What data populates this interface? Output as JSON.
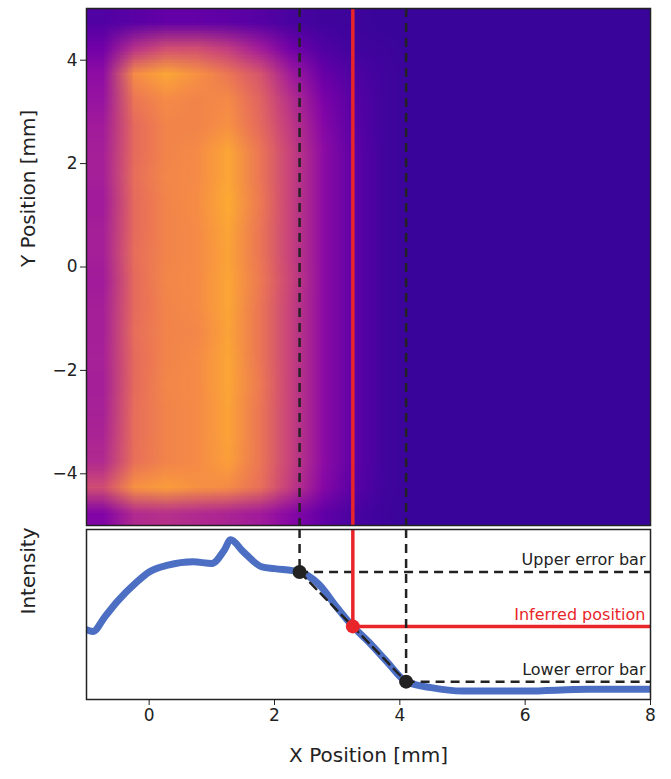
{
  "chart_data": [
    {
      "type": "heatmap",
      "ylabel": "Y Position [mm]",
      "xlim": [
        -1,
        8
      ],
      "ylim": [
        -5,
        5
      ],
      "yticks": [
        -4,
        -2,
        0,
        2,
        4
      ],
      "tick_labels": "y",
      "color": "plasma",
      "color_range": [
        0,
        1
      ],
      "cells": [
        [
          0.14,
          0.16,
          0.18,
          0.18,
          0.17,
          0.15,
          0.12,
          0.1,
          0.09,
          0.08,
          0.08,
          0.08,
          0.08,
          0.08,
          0.08,
          0.08,
          0.08,
          0.08
        ],
        [
          0.22,
          0.42,
          0.52,
          0.52,
          0.46,
          0.35,
          0.22,
          0.14,
          0.1,
          0.09,
          0.08,
          0.08,
          0.08,
          0.08,
          0.08,
          0.08,
          0.08,
          0.08
        ],
        [
          0.3,
          0.72,
          0.8,
          0.74,
          0.66,
          0.55,
          0.35,
          0.2,
          0.13,
          0.1,
          0.08,
          0.08,
          0.08,
          0.08,
          0.08,
          0.08,
          0.08,
          0.08
        ],
        [
          0.32,
          0.66,
          0.72,
          0.7,
          0.72,
          0.6,
          0.42,
          0.25,
          0.15,
          0.1,
          0.08,
          0.08,
          0.08,
          0.08,
          0.08,
          0.08,
          0.08,
          0.08
        ],
        [
          0.35,
          0.62,
          0.7,
          0.7,
          0.74,
          0.62,
          0.45,
          0.28,
          0.16,
          0.1,
          0.08,
          0.08,
          0.08,
          0.08,
          0.08,
          0.08,
          0.08,
          0.08
        ],
        [
          0.36,
          0.62,
          0.7,
          0.72,
          0.8,
          0.66,
          0.48,
          0.3,
          0.17,
          0.1,
          0.08,
          0.08,
          0.08,
          0.08,
          0.08,
          0.08,
          0.08,
          0.08
        ],
        [
          0.36,
          0.63,
          0.71,
          0.72,
          0.8,
          0.66,
          0.48,
          0.3,
          0.17,
          0.1,
          0.08,
          0.08,
          0.08,
          0.08,
          0.08,
          0.08,
          0.08,
          0.08
        ],
        [
          0.35,
          0.62,
          0.7,
          0.73,
          0.81,
          0.67,
          0.48,
          0.3,
          0.17,
          0.1,
          0.08,
          0.08,
          0.08,
          0.08,
          0.08,
          0.08,
          0.08,
          0.08
        ],
        [
          0.36,
          0.62,
          0.7,
          0.72,
          0.8,
          0.66,
          0.48,
          0.3,
          0.17,
          0.1,
          0.08,
          0.08,
          0.08,
          0.08,
          0.08,
          0.08,
          0.08,
          0.08
        ],
        [
          0.36,
          0.63,
          0.7,
          0.72,
          0.79,
          0.66,
          0.48,
          0.3,
          0.17,
          0.1,
          0.08,
          0.08,
          0.08,
          0.08,
          0.08,
          0.08,
          0.08,
          0.08
        ],
        [
          0.35,
          0.62,
          0.71,
          0.72,
          0.8,
          0.67,
          0.49,
          0.3,
          0.17,
          0.1,
          0.08,
          0.08,
          0.08,
          0.08,
          0.08,
          0.08,
          0.08,
          0.08
        ],
        [
          0.36,
          0.62,
          0.7,
          0.72,
          0.8,
          0.66,
          0.48,
          0.3,
          0.17,
          0.1,
          0.08,
          0.08,
          0.08,
          0.08,
          0.08,
          0.08,
          0.08,
          0.08
        ],
        [
          0.36,
          0.63,
          0.7,
          0.71,
          0.79,
          0.66,
          0.48,
          0.3,
          0.17,
          0.1,
          0.08,
          0.08,
          0.08,
          0.08,
          0.08,
          0.08,
          0.08,
          0.08
        ],
        [
          0.37,
          0.62,
          0.7,
          0.72,
          0.8,
          0.66,
          0.48,
          0.3,
          0.17,
          0.1,
          0.08,
          0.08,
          0.08,
          0.08,
          0.08,
          0.08,
          0.08,
          0.08
        ],
        [
          0.36,
          0.62,
          0.71,
          0.72,
          0.8,
          0.67,
          0.48,
          0.3,
          0.17,
          0.1,
          0.08,
          0.08,
          0.08,
          0.08,
          0.08,
          0.08,
          0.08,
          0.08
        ],
        [
          0.37,
          0.63,
          0.7,
          0.72,
          0.79,
          0.66,
          0.48,
          0.3,
          0.17,
          0.1,
          0.08,
          0.08,
          0.08,
          0.08,
          0.08,
          0.08,
          0.08,
          0.08
        ],
        [
          0.38,
          0.63,
          0.7,
          0.72,
          0.79,
          0.66,
          0.48,
          0.3,
          0.17,
          0.1,
          0.08,
          0.08,
          0.08,
          0.08,
          0.08,
          0.08,
          0.08,
          0.08
        ],
        [
          0.4,
          0.64,
          0.7,
          0.72,
          0.78,
          0.66,
          0.48,
          0.3,
          0.17,
          0.1,
          0.08,
          0.08,
          0.08,
          0.08,
          0.08,
          0.08,
          0.08,
          0.08
        ],
        [
          0.52,
          0.74,
          0.77,
          0.74,
          0.72,
          0.64,
          0.46,
          0.28,
          0.16,
          0.1,
          0.08,
          0.08,
          0.08,
          0.08,
          0.08,
          0.08,
          0.08,
          0.08
        ],
        [
          0.26,
          0.4,
          0.42,
          0.4,
          0.38,
          0.35,
          0.28,
          0.18,
          0.12,
          0.09,
          0.08,
          0.08,
          0.08,
          0.08,
          0.08,
          0.08,
          0.08,
          0.08
        ]
      ],
      "vlines": [
        {
          "x": 2.4,
          "color": "#222222",
          "line_style": "dashed"
        },
        {
          "x": 3.25,
          "color": "#e8262a",
          "line_style": "solid"
        },
        {
          "x": 4.1,
          "color": "#222222",
          "line_style": "dashed"
        }
      ]
    },
    {
      "type": "line",
      "xlabel": "X Position [mm]",
      "ylabel": "Intensity",
      "xlim": [
        -1,
        8
      ],
      "xticks": [
        0,
        2,
        4,
        6,
        8
      ],
      "ylim": [
        0,
        1
      ],
      "tick_labels": "x",
      "x": [
        -1,
        -0.9,
        -0.7,
        -0.5,
        -0.2,
        0,
        0.3,
        0.7,
        1.0,
        1.2,
        1.3,
        1.5,
        1.8,
        2.0,
        2.4,
        2.7,
        3.0,
        3.25,
        3.5,
        3.8,
        4.1,
        4.5,
        5,
        6,
        7,
        8
      ],
      "series": [
        {
          "color": "#4c6fc4",
          "values": [
            0.41,
            0.4,
            0.49,
            0.58,
            0.69,
            0.75,
            0.79,
            0.81,
            0.8,
            0.88,
            0.94,
            0.87,
            0.78,
            0.77,
            0.75,
            0.68,
            0.54,
            0.43,
            0.34,
            0.22,
            0.105,
            0.07,
            0.05,
            0.05,
            0.06,
            0.06
          ]
        }
      ],
      "annotations": [
        {
          "label": "Upper error bar",
          "x": 2.4,
          "y": 0.75,
          "color": "#222222",
          "line_style": "dashed"
        },
        {
          "label": "Inferred position",
          "x": 3.25,
          "y": 0.43,
          "color": "#e8262a",
          "line_style": "solid"
        },
        {
          "label": "Lower error bar",
          "x": 4.1,
          "y": 0.105,
          "color": "#222222",
          "line_style": "dashed"
        }
      ]
    }
  ]
}
